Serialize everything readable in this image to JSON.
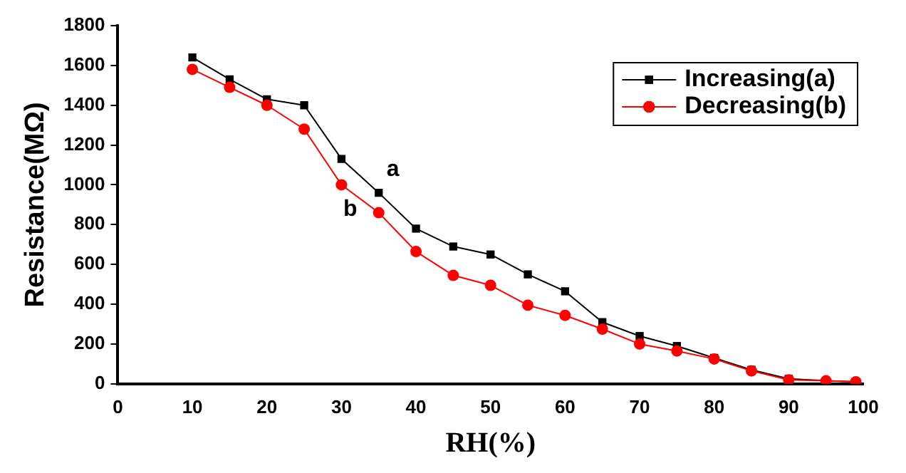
{
  "chart_data": {
    "type": "line",
    "xlabel": "RH(%)",
    "ylabel": "Resistance(MΩ)",
    "xlim": [
      0,
      100
    ],
    "xticks": [
      0,
      10,
      20,
      30,
      40,
      50,
      60,
      70,
      80,
      90,
      100
    ],
    "ylim": [
      0,
      1800
    ],
    "yticks": [
      0,
      200,
      400,
      600,
      800,
      1000,
      1200,
      1400,
      1600,
      1800
    ],
    "grid": false,
    "legend": "top right",
    "line_style": "solid",
    "series": [
      {
        "name": "Increasing(a)",
        "color": "#000000",
        "marker": "square",
        "x": [
          10,
          15,
          20,
          25,
          30,
          35,
          40,
          45,
          50,
          55,
          60,
          65,
          70,
          75,
          80,
          85,
          90,
          95,
          99
        ],
        "values": [
          1640,
          1530,
          1430,
          1400,
          1130,
          960,
          780,
          690,
          650,
          550,
          465,
          310,
          240,
          190,
          130,
          70,
          25,
          15,
          10
        ]
      },
      {
        "name": "Decreasing(b)",
        "color": "#ff0000",
        "marker": "circle",
        "x": [
          10,
          15,
          20,
          25,
          30,
          35,
          40,
          45,
          50,
          55,
          60,
          65,
          70,
          75,
          80,
          85,
          90,
          95,
          99
        ],
        "values": [
          1580,
          1490,
          1400,
          1280,
          1000,
          860,
          665,
          545,
          495,
          395,
          344,
          275,
          200,
          165,
          125,
          65,
          20,
          15,
          10
        ]
      }
    ],
    "annotations": [
      {
        "text": "a",
        "x": 35,
        "y": 960
      },
      {
        "text": "b",
        "x": 35,
        "y": 860
      }
    ]
  }
}
